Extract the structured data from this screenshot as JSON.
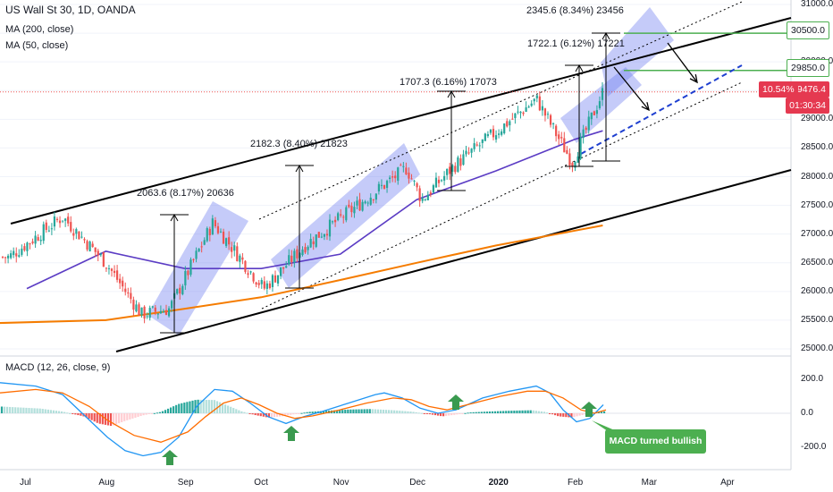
{
  "header": {
    "title": "US Wall St 30, 1D, OANDA",
    "ma200_label": "MA (200, close)",
    "ma50_label": "MA (50, close)",
    "macd_label": "MACD (12, 26, close, 9)"
  },
  "price_axis": {
    "ticks": [
      "31000.0",
      "30500.0",
      "30000.0",
      "29850.0",
      "29476.4",
      "29000.0",
      "28500.0",
      "28000.0",
      "27500.0",
      "27000.0",
      "26500.0",
      "26000.0",
      "25500.0",
      "25000.0"
    ],
    "tick_values": [
      31000,
      30500,
      30000,
      29850,
      29476.4,
      29000,
      28500,
      28000,
      27500,
      27000,
      26500,
      26000,
      25500,
      25000
    ]
  },
  "macd_axis": {
    "ticks": [
      "200.0",
      "0.0",
      "-200.0"
    ],
    "tick_values": [
      200,
      0,
      -200
    ]
  },
  "time_axis": {
    "labels": [
      "Jul",
      "Aug",
      "Sep",
      "Oct",
      "Nov",
      "Dec",
      "2020",
      "Feb",
      "Mar",
      "Apr"
    ],
    "bold_label": "2020"
  },
  "levels": {
    "upper_target": "30500.0",
    "lower_target": "29850.0",
    "last_price": "29476.4",
    "last_change": "10.54%",
    "countdown": "01:30:34"
  },
  "annotations": [
    {
      "text": "2063.6 (8.17%) 20636"
    },
    {
      "text": "2182.3 (8.40%) 21823"
    },
    {
      "text": "1707.3 (6.16%) 17073"
    },
    {
      "text": "1722.1 (6.12%) 17221"
    },
    {
      "text": "2345.6 (8.34%) 23456"
    }
  ],
  "callout": {
    "text": "MACD turned bullish"
  },
  "colors": {
    "up": "#26a69a",
    "down": "#ef5350",
    "ma50": "#5b3cc4",
    "ma200": "#f57c00",
    "macd": "#2196f3",
    "signal": "#ff6d00",
    "channel_box": "#6f7cf0",
    "target_line": "#4caf50",
    "arrow": "#3a9a4f"
  },
  "chart_data": {
    "type": "candlestick",
    "title": "US Wall St 30, 1D, OANDA",
    "x_range": [
      "2019-06-20",
      "2020-04-20"
    ],
    "y_range": [
      24900,
      31050
    ],
    "price_series_approx": [
      {
        "date": "2019-06-24",
        "close": 26600
      },
      {
        "date": "2019-07-15",
        "close": 27300
      },
      {
        "date": "2019-08-01",
        "close": 26500
      },
      {
        "date": "2019-08-15",
        "close": 25600
      },
      {
        "date": "2019-08-26",
        "close": 25700
      },
      {
        "date": "2019-09-12",
        "close": 27200
      },
      {
        "date": "2019-10-02",
        "close": 26050
      },
      {
        "date": "2019-10-18",
        "close": 26800
      },
      {
        "date": "2019-11-27",
        "close": 28150
      },
      {
        "date": "2019-12-03",
        "close": 27600
      },
      {
        "date": "2019-12-16",
        "close": 28200
      },
      {
        "date": "2020-01-17",
        "close": 29350
      },
      {
        "date": "2020-01-31",
        "close": 28250
      },
      {
        "date": "2020-02-12",
        "close": 29476.4
      }
    ],
    "ma50_approx": [
      {
        "date": "2019-07-01",
        "value": 26050
      },
      {
        "date": "2019-08-01",
        "value": 26700
      },
      {
        "date": "2019-09-01",
        "value": 26400
      },
      {
        "date": "2019-10-01",
        "value": 26400
      },
      {
        "date": "2019-11-01",
        "value": 26650
      },
      {
        "date": "2019-12-01",
        "value": 27600
      },
      {
        "date": "2020-01-01",
        "value": 28100
      },
      {
        "date": "2020-02-01",
        "value": 28650
      },
      {
        "date": "2020-02-12",
        "value": 28800
      }
    ],
    "ma200_approx": [
      {
        "date": "2019-06-20",
        "value": 25450
      },
      {
        "date": "2019-08-01",
        "value": 25500
      },
      {
        "date": "2019-09-01",
        "value": 25700
      },
      {
        "date": "2019-10-01",
        "value": 25900
      },
      {
        "date": "2019-11-01",
        "value": 26200
      },
      {
        "date": "2019-12-01",
        "value": 26500
      },
      {
        "date": "2020-01-01",
        "value": 26800
      },
      {
        "date": "2020-02-12",
        "value": 27150
      }
    ],
    "levels": [
      30500,
      29850
    ],
    "last_price": 29476.4,
    "macd_range": [
      -280,
      270
    ]
  }
}
